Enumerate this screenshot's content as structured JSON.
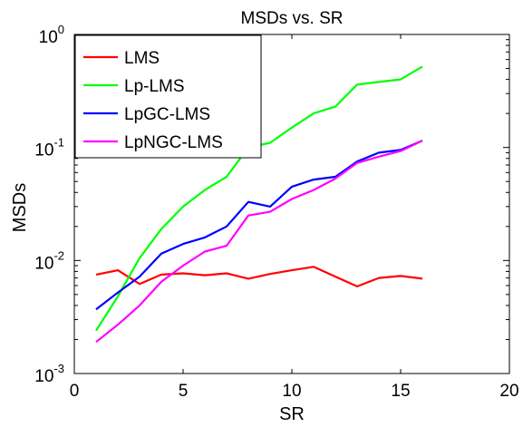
{
  "chart_data": {
    "type": "line",
    "title": "MSDs vs. SR",
    "xlabel": "SR",
    "ylabel": "MSDs",
    "xlim": [
      0,
      20
    ],
    "ylim": [
      0.001,
      1
    ],
    "yscale": "log",
    "x_ticks": [
      {
        "value": 0,
        "label": "0"
      },
      {
        "value": 5,
        "label": "5"
      },
      {
        "value": 10,
        "label": "10"
      },
      {
        "value": 15,
        "label": "15"
      },
      {
        "value": 20,
        "label": "20"
      }
    ],
    "y_ticks": [
      {
        "value": 0.001,
        "base": "10",
        "exp": "-3"
      },
      {
        "value": 0.01,
        "base": "10",
        "exp": "-2"
      },
      {
        "value": 0.1,
        "base": "10",
        "exp": "-1"
      },
      {
        "value": 1,
        "base": "10",
        "exp": "0"
      }
    ],
    "grid": false,
    "legend_position": "top-left",
    "x": [
      1,
      2,
      3,
      4,
      5,
      6,
      7,
      8,
      9,
      10,
      11,
      12,
      13,
      14,
      15,
      16
    ],
    "series": [
      {
        "name": "LMS",
        "color": "#ff0000",
        "values": [
          0.0075,
          0.0082,
          0.0062,
          0.0075,
          0.0077,
          0.0074,
          0.0077,
          0.0069,
          0.0076,
          0.0082,
          0.0088,
          0.0072,
          0.0059,
          0.007,
          0.0073,
          0.0069
        ]
      },
      {
        "name": "Lp-LMS",
        "color": "#00ff00",
        "values": [
          0.0024,
          0.0048,
          0.0105,
          0.019,
          0.03,
          0.042,
          0.055,
          0.1,
          0.11,
          0.15,
          0.2,
          0.23,
          0.36,
          0.38,
          0.4,
          0.52
        ]
      },
      {
        "name": "LpGC-LMS",
        "color": "#0000ff",
        "values": [
          0.0037,
          0.0052,
          0.0072,
          0.0115,
          0.014,
          0.016,
          0.02,
          0.033,
          0.03,
          0.045,
          0.052,
          0.055,
          0.075,
          0.09,
          0.095,
          0.115
        ]
      },
      {
        "name": "LpNGC-LMS",
        "color": "#ff00ff",
        "values": [
          0.0019,
          0.0027,
          0.004,
          0.0065,
          0.009,
          0.012,
          0.0135,
          0.025,
          0.027,
          0.035,
          0.042,
          0.053,
          0.073,
          0.083,
          0.093,
          0.115
        ]
      }
    ]
  }
}
